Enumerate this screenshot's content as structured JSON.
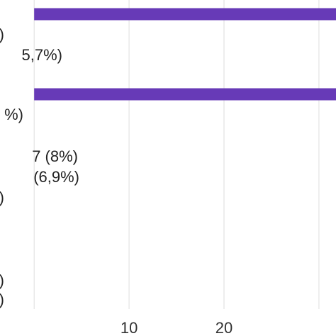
{
  "chart_data": {
    "type": "bar",
    "orientation": "horizontal",
    "title": "",
    "xlabel": "",
    "ylabel": "",
    "grid": true,
    "bar_color": "#673ab7",
    "x_ticks": [
      0,
      10,
      20,
      30
    ],
    "x_tick_labels": [
      "10",
      "20"
    ],
    "xlim": [
      -3.6,
      31.8
    ],
    "bars": [
      {
        "value": 31.8,
        "label": ""
      },
      {
        "value": 0,
        "label": ")"
      },
      {
        "value": 0,
        "label": "5,7%)"
      },
      {
        "value": 31.8,
        "label": ""
      },
      {
        "value": 0,
        "label": "%)"
      },
      {
        "value": 0,
        "label": "7 (8%)"
      },
      {
        "value": 0,
        "label": "(6,9%)"
      },
      {
        "value": 0,
        "label": ")"
      },
      {
        "value": 0,
        "label": ")"
      },
      {
        "value": 0,
        "label": ")"
      }
    ]
  }
}
